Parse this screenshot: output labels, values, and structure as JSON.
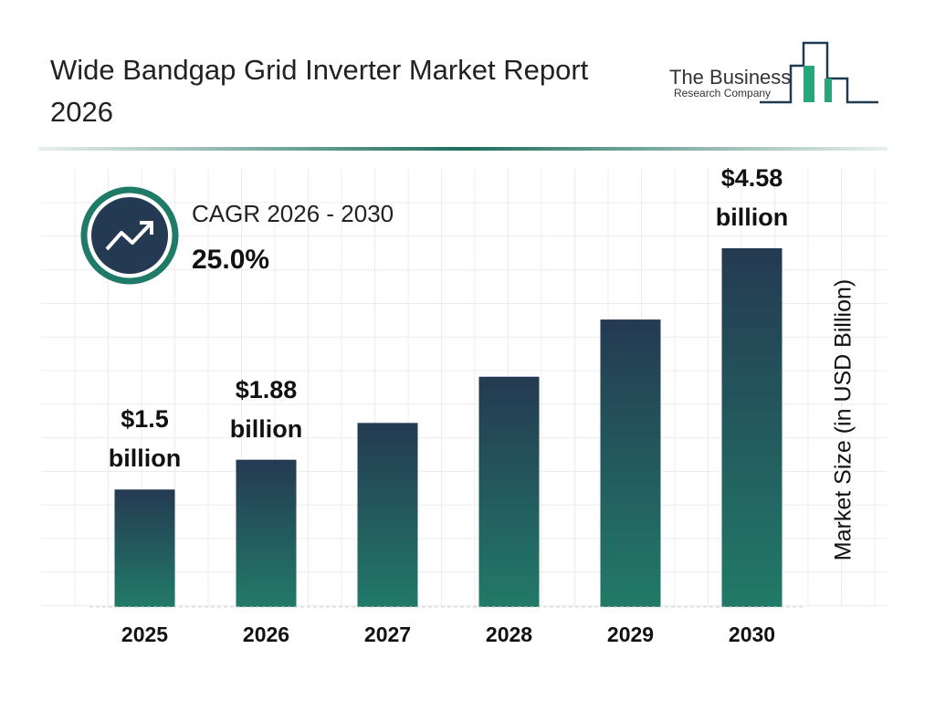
{
  "chart_data": {
    "type": "bar",
    "title": "Wide Bandgap Grid Inverter Market Report 2026",
    "categories": [
      "2025",
      "2026",
      "2027",
      "2028",
      "2029",
      "2030"
    ],
    "values": [
      1.5,
      1.88,
      2.35,
      2.94,
      3.67,
      4.58
    ],
    "value_labels": [
      "$1.5 billion",
      "$1.88 billion",
      null,
      null,
      null,
      "$4.58 billion"
    ],
    "y_label": "Market Size (in USD Billion)",
    "cagr_label": "CAGR 2026 - 2030",
    "cagr_value": "25.0%",
    "colors": [
      "#243a52",
      "#227a68"
    ],
    "grid": true
  },
  "logo": {
    "line1": "The Business",
    "line2": "Research Company"
  }
}
